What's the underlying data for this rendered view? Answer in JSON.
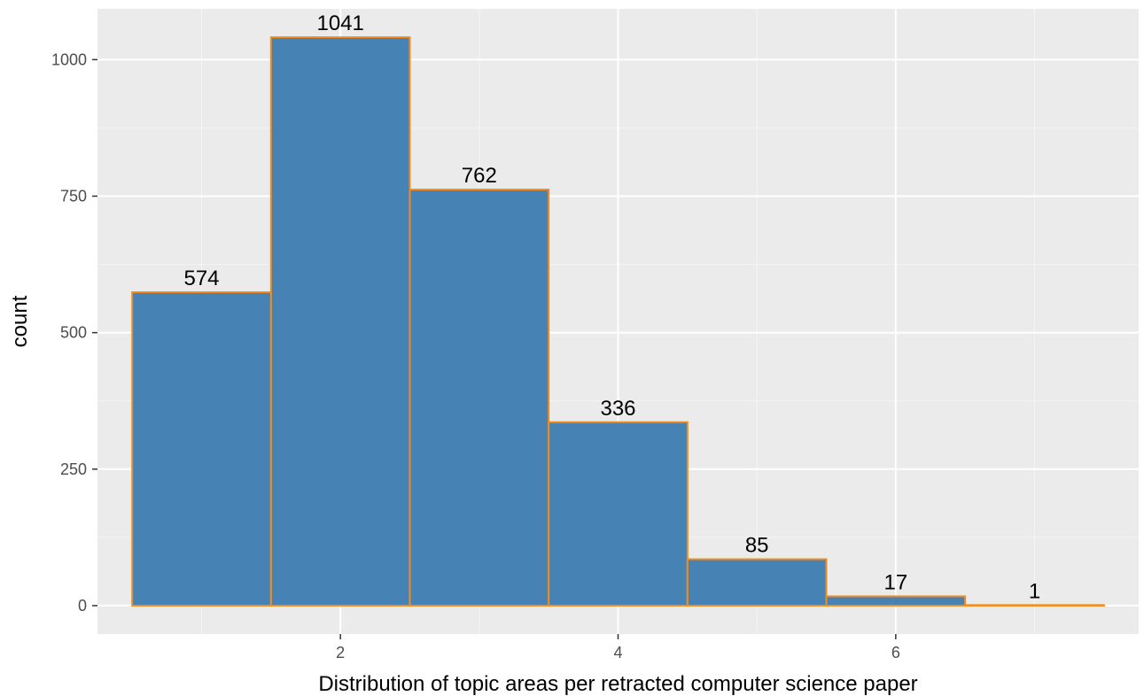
{
  "chart_data": {
    "type": "bar",
    "title": "",
    "xlabel": "Distribution of topic areas per retracted computer science paper",
    "ylabel": "count",
    "x": [
      1,
      2,
      3,
      4,
      5,
      6,
      7
    ],
    "values": [
      574,
      1041,
      762,
      336,
      85,
      17,
      1
    ],
    "data_labels": [
      "574",
      "1041",
      "762",
      "336",
      "85",
      "17",
      "1"
    ],
    "bin_width": 1,
    "xlim": [
      0.25,
      7.75
    ],
    "ylim": [
      -52,
      1093
    ],
    "x_ticks": [
      2,
      4,
      6
    ],
    "x_tick_labels": [
      "2",
      "4",
      "6"
    ],
    "y_ticks": [
      0,
      250,
      500,
      750,
      1000
    ],
    "y_tick_labels": [
      "0",
      "250",
      "500",
      "750",
      "1000"
    ],
    "grid": true,
    "legend": "none",
    "colors": {
      "bar_fill": "#4682B4",
      "bar_outline": "#F28C1E",
      "panel_background": "#EBEBEB",
      "grid_major": "#FFFFFF",
      "grid_minor": "#F5F5F5"
    }
  }
}
